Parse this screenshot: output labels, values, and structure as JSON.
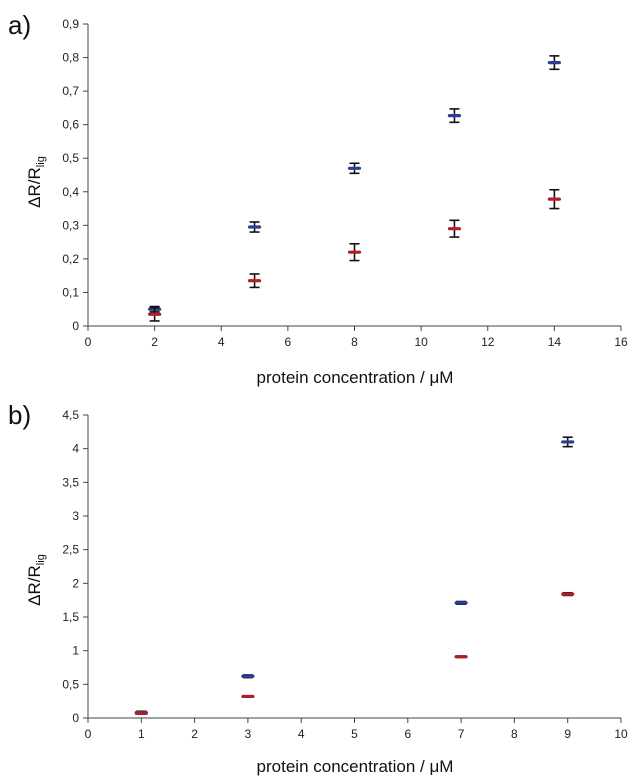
{
  "colors": {
    "series1": "#2c3e8f",
    "series2": "#b01e23",
    "errorbar": "#111111",
    "axis": "#444444"
  },
  "chart_data": [
    {
      "type": "scatter",
      "panel_label": "a)",
      "xlabel": "protein concentration / μM",
      "ylabel_main": "ΔR/R",
      "ylabel_sub": "lig",
      "xlim": [
        0,
        16
      ],
      "ylim": [
        0,
        0.9
      ],
      "x_ticks": [
        0,
        2,
        4,
        6,
        8,
        10,
        12,
        14,
        16
      ],
      "y_ticks": [
        0,
        0.1,
        0.2,
        0.3,
        0.4,
        0.5,
        0.6,
        0.7,
        0.8,
        0.9
      ],
      "y_tick_labels": [
        "0",
        "0,1",
        "0,2",
        "0,3",
        "0,4",
        "0,5",
        "0,6",
        "0,7",
        "0,8",
        "0,9"
      ],
      "x_tick_labels": [
        "0",
        "2",
        "4",
        "6",
        "8",
        "10",
        "12",
        "14",
        "16"
      ],
      "series": [
        {
          "color": "#2c3e8f",
          "x": [
            2,
            5,
            8,
            11,
            14
          ],
          "y": [
            0.05,
            0.295,
            0.47,
            0.627,
            0.785
          ],
          "err": [
            0.008,
            0.015,
            0.015,
            0.02,
            0.02
          ]
        },
        {
          "color": "#b01e23",
          "x": [
            2,
            5,
            8,
            11,
            14
          ],
          "y": [
            0.035,
            0.135,
            0.22,
            0.29,
            0.378
          ],
          "err": [
            0.02,
            0.02,
            0.025,
            0.025,
            0.028
          ]
        }
      ]
    },
    {
      "type": "scatter",
      "panel_label": "b)",
      "xlabel": "protein concentration / μM",
      "ylabel_main": "ΔR/R",
      "ylabel_sub": "lig",
      "xlim": [
        0,
        10
      ],
      "ylim": [
        0,
        4.5
      ],
      "x_ticks": [
        0,
        1,
        2,
        3,
        4,
        5,
        6,
        7,
        8,
        9,
        10
      ],
      "y_ticks": [
        0,
        0.5,
        1,
        1.5,
        2,
        2.5,
        3,
        3.5,
        4,
        4.5
      ],
      "y_tick_labels": [
        "0",
        "0,5",
        "1",
        "1,5",
        "2",
        "2,5",
        "3",
        "3,5",
        "4",
        "4,5"
      ],
      "x_tick_labels": [
        "0",
        "1",
        "2",
        "3",
        "4",
        "5",
        "6",
        "7",
        "8",
        "9",
        "10"
      ],
      "series": [
        {
          "color": "#2c3e8f",
          "x": [
            1,
            3,
            7,
            9
          ],
          "y": [
            0.08,
            0.62,
            1.71,
            4.1
          ],
          "err": [
            0.02,
            0.02,
            0.02,
            0.07
          ]
        },
        {
          "color": "#b01e23",
          "x": [
            1,
            3,
            7,
            9
          ],
          "y": [
            0.07,
            0.32,
            0.91,
            1.84
          ],
          "err": [
            0.01,
            0.01,
            0.01,
            0.02
          ]
        }
      ]
    }
  ]
}
